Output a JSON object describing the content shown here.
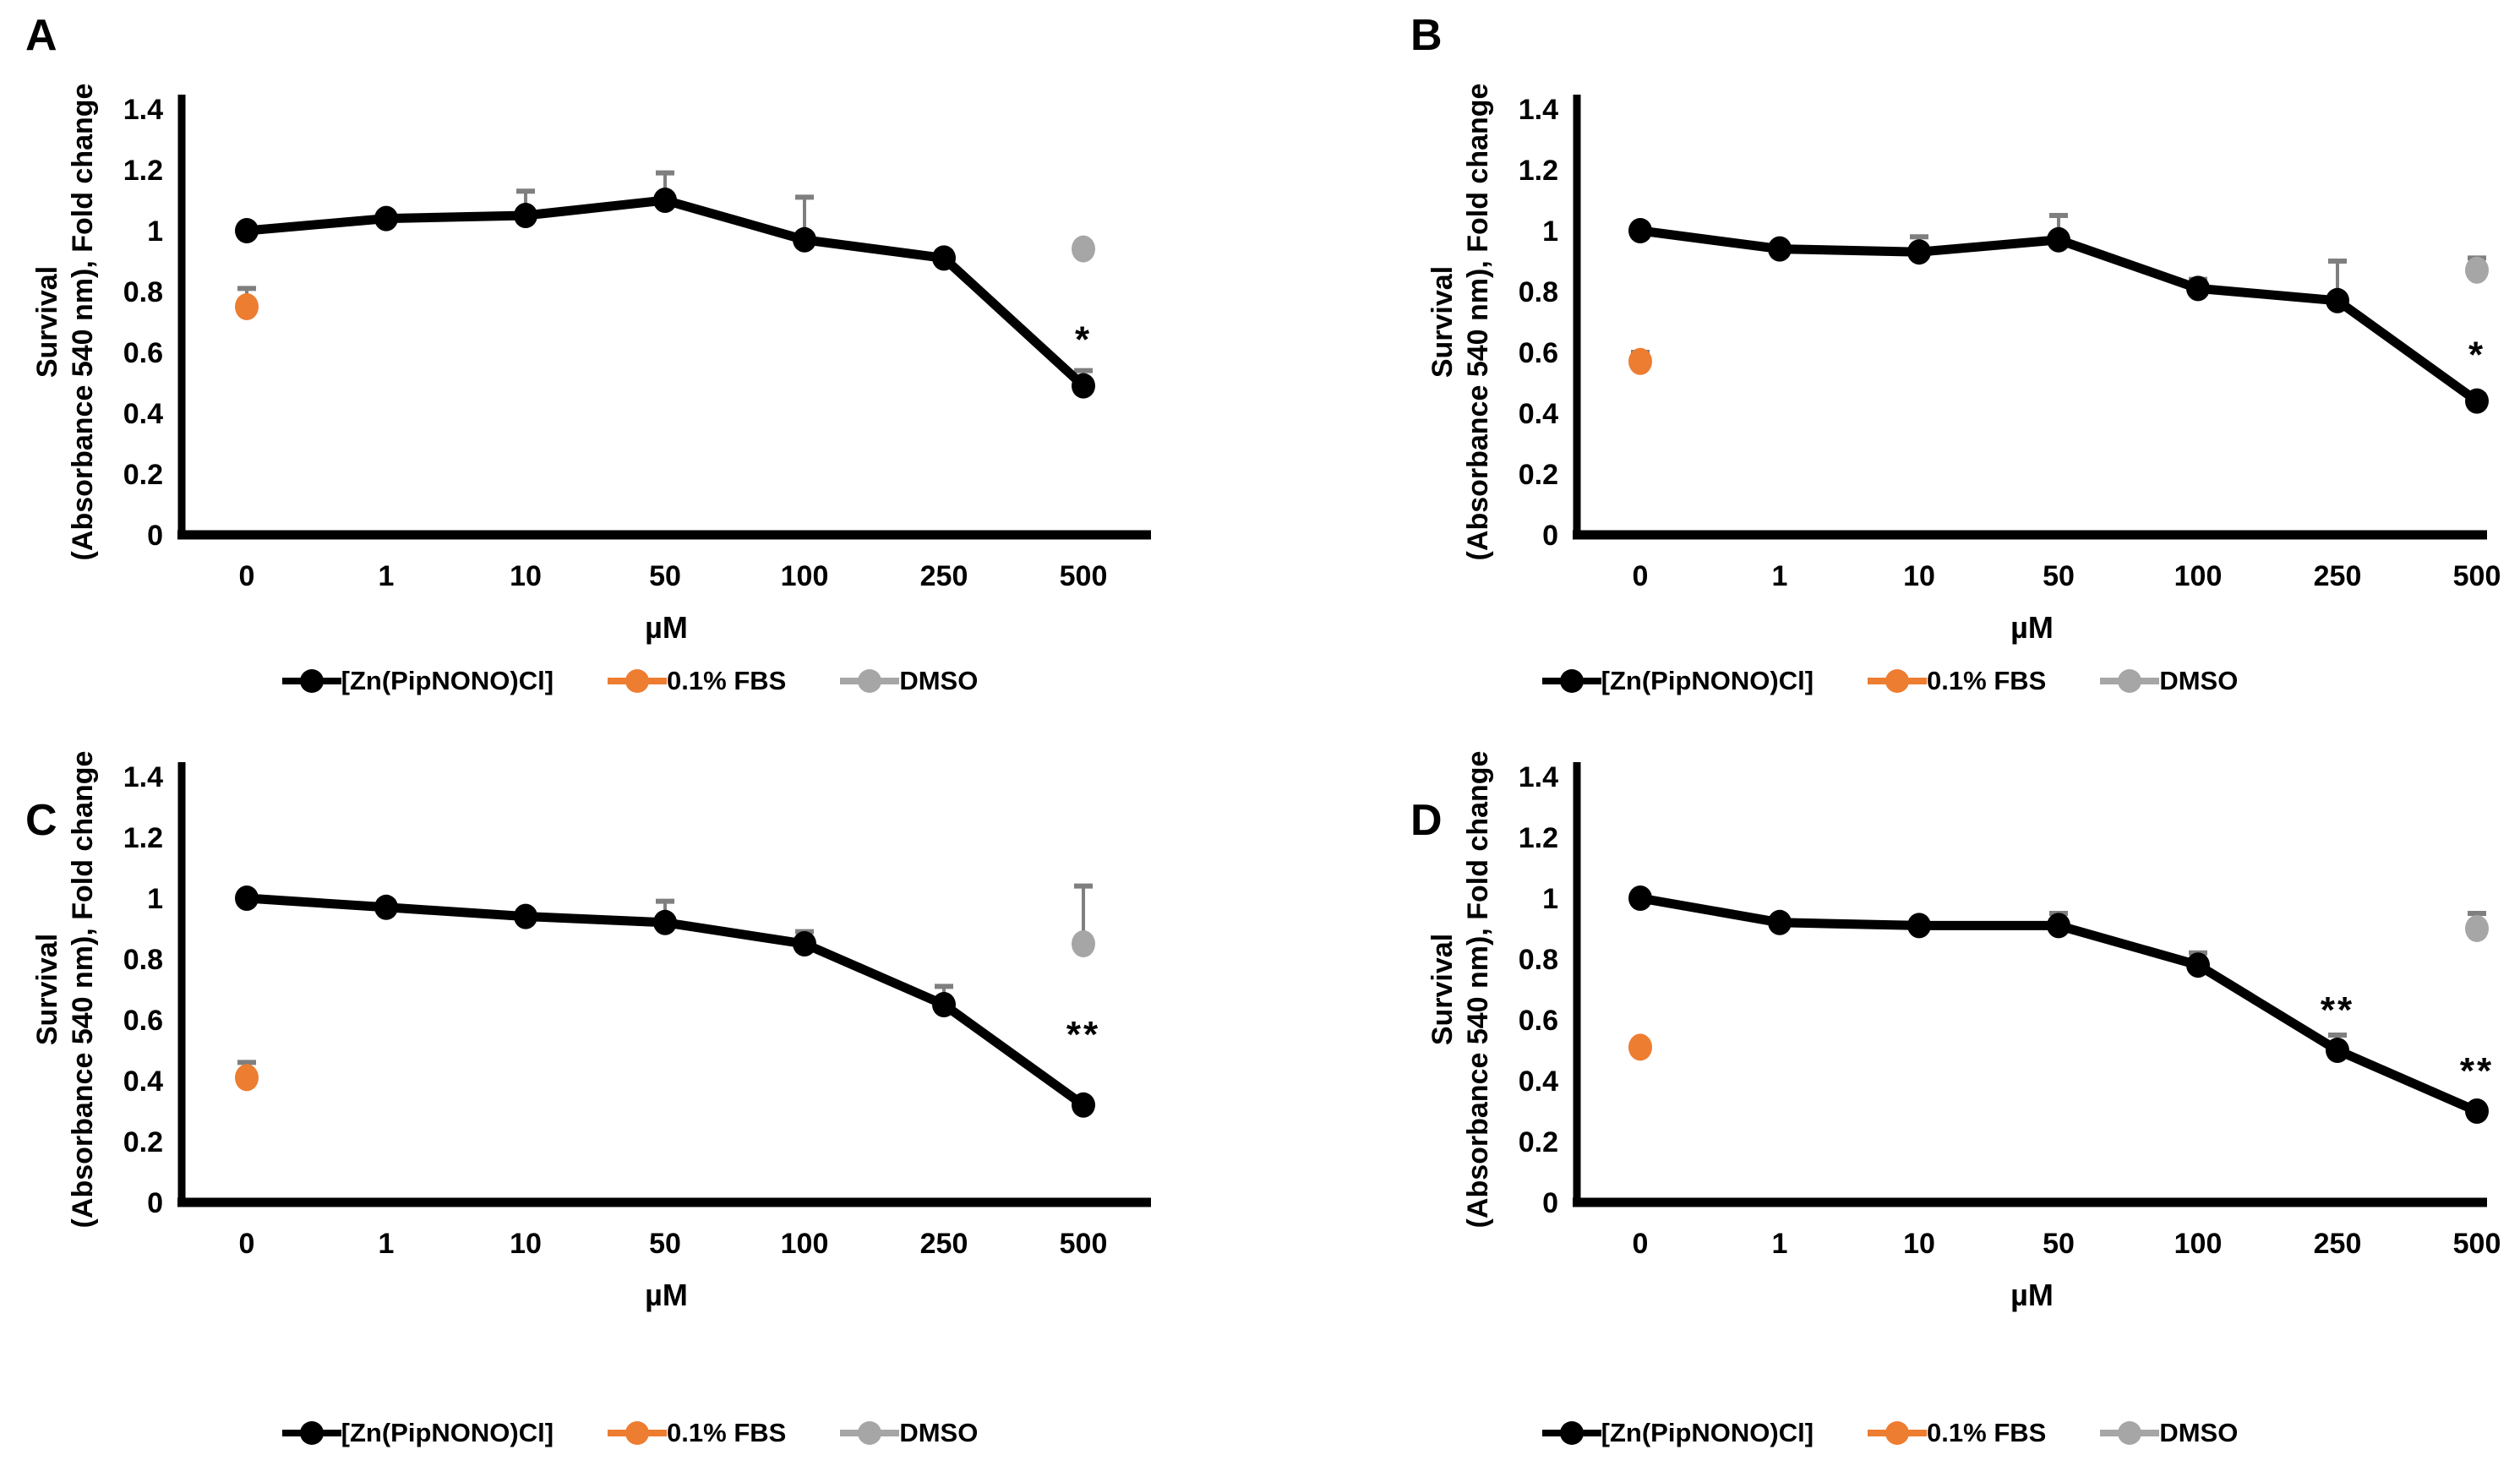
{
  "figure": {
    "background": "#ffffff",
    "description_note": ""
  },
  "colors": {
    "series_black": "#000000",
    "fbs_orange": "#ED7D31",
    "dmso_gray": "#A6A6A6",
    "error_bar": "#7F7F7F"
  },
  "axis": {
    "ylabel_line1": "Survival",
    "ylabel_line2": "(Absorbance 540 nm), Fold change",
    "xlabel": "µM",
    "y_ticks": [
      "1.4",
      "1.2",
      "1",
      "0.8",
      "0.6",
      "0.4",
      "0.2",
      "0"
    ],
    "y_tick_values": [
      1.4,
      1.2,
      1,
      0.8,
      0.6,
      0.4,
      0.2,
      0
    ],
    "ylim": [
      0,
      1.4
    ],
    "x_categories": [
      "0",
      "1",
      "10",
      "50",
      "100",
      "250",
      "500"
    ]
  },
  "legend": {
    "items": [
      {
        "label": "[Zn(PipNONO)Cl]",
        "color": "#000000"
      },
      {
        "label": "0.1% FBS",
        "color": "#ED7D31"
      },
      {
        "label": "DMSO",
        "color": "#A6A6A6"
      }
    ]
  },
  "chart_data": [
    {
      "panel": "A",
      "type": "line",
      "categories": [
        "0",
        "1",
        "10",
        "50",
        "100",
        "250",
        "500"
      ],
      "series": [
        {
          "name": "[Zn(PipNONO)Cl]",
          "values": [
            1.0,
            1.04,
            1.05,
            1.1,
            0.97,
            0.91,
            0.49
          ],
          "errors_up": [
            0,
            0,
            0.08,
            0.09,
            0.14,
            0.02,
            0.05
          ]
        }
      ],
      "points": [
        {
          "name": "0.1% FBS",
          "x": "0",
          "value": 0.75,
          "error_up": 0.06
        },
        {
          "name": "DMSO",
          "x": "500",
          "value": 0.94,
          "error_up": 0
        }
      ],
      "annotations": [
        {
          "text": "*",
          "category": "500",
          "value": 0.64
        }
      ]
    },
    {
      "panel": "B",
      "type": "line",
      "categories": [
        "0",
        "1",
        "10",
        "50",
        "100",
        "250",
        "500"
      ],
      "series": [
        {
          "name": "[Zn(PipNONO)Cl]",
          "values": [
            1.0,
            0.94,
            0.93,
            0.97,
            0.81,
            0.77,
            0.44
          ],
          "errors_up": [
            0,
            0,
            0.05,
            0.08,
            0.03,
            0.13,
            0.02
          ]
        }
      ],
      "points": [
        {
          "name": "0.1% FBS",
          "x": "0",
          "value": 0.57,
          "error_up": 0.03
        },
        {
          "name": "DMSO",
          "x": "500",
          "value": 0.87,
          "error_up": 0.04
        }
      ],
      "annotations": [
        {
          "text": "*",
          "category": "500",
          "value": 0.59
        }
      ]
    },
    {
      "panel": "C",
      "type": "line",
      "categories": [
        "0",
        "1",
        "10",
        "50",
        "100",
        "250",
        "500"
      ],
      "series": [
        {
          "name": "[Zn(PipNONO)Cl]",
          "values": [
            1.0,
            0.97,
            0.94,
            0.92,
            0.85,
            0.65,
            0.32
          ],
          "errors_up": [
            0,
            0.02,
            0,
            0.07,
            0.04,
            0.06,
            0
          ]
        }
      ],
      "points": [
        {
          "name": "0.1% FBS",
          "x": "0",
          "value": 0.41,
          "error_up": 0.05
        },
        {
          "name": "DMSO",
          "x": "500",
          "value": 0.85,
          "error_up": 0.19
        }
      ],
      "annotations": [
        {
          "text": "**",
          "category": "500",
          "value": 0.55
        }
      ]
    },
    {
      "panel": "D",
      "type": "line",
      "categories": [
        "0",
        "1",
        "10",
        "50",
        "100",
        "250",
        "500"
      ],
      "series": [
        {
          "name": "[Zn(PipNONO)Cl]",
          "values": [
            1.0,
            0.92,
            0.91,
            0.91,
            0.78,
            0.5,
            0.3
          ],
          "errors_up": [
            0,
            0,
            0,
            0.04,
            0.04,
            0.05,
            0
          ]
        }
      ],
      "points": [
        {
          "name": "0.1% FBS",
          "x": "0",
          "value": 0.51,
          "error_up": 0.02
        },
        {
          "name": "DMSO",
          "x": "500",
          "value": 0.9,
          "error_up": 0.05
        }
      ],
      "annotations": [
        {
          "text": "**",
          "category": "250",
          "value": 0.63
        },
        {
          "text": "**",
          "category": "500",
          "value": 0.43
        }
      ]
    }
  ]
}
